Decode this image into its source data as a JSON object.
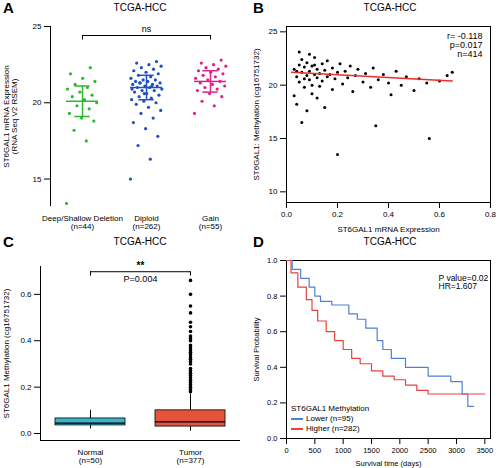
{
  "chart_data": [
    {
      "panel_label": "A",
      "type": "strip",
      "title": "TCGA-HCC",
      "y_label": "ST6GAL1 mRNA Expression\n(RNA Seq V2 RSEM)",
      "categories": [
        "Deep/Shallow Deletion\n(n=44)",
        "Diploid\n(n=262)",
        "Gain\n(n=55)"
      ],
      "colors": [
        "#2eb82e",
        "#1f4fc4",
        "#e0208c"
      ],
      "values": [
        [
          13.4,
          17.5,
          18.2,
          18.8,
          19.0,
          19.3,
          19.6,
          19.8,
          20.0,
          20.2,
          20.4,
          20.5,
          20.7,
          20.9,
          21.0,
          21.2,
          21.4,
          21.6,
          21.9,
          22.3
        ],
        [
          15.0,
          16.3,
          17.2,
          17.8,
          18.3,
          18.7,
          19.0,
          19.3,
          19.5,
          19.7,
          19.9,
          20.0,
          20.1,
          20.2,
          20.3,
          20.4,
          20.5,
          20.6,
          20.7,
          20.8,
          20.8,
          20.9,
          21.0,
          21.0,
          21.1,
          21.1,
          21.2,
          21.2,
          21.3,
          21.3,
          21.4,
          21.4,
          21.5,
          21.5,
          21.6,
          21.7,
          21.8,
          21.9,
          22.0,
          22.1,
          22.2,
          22.3,
          22.4,
          22.5,
          22.6,
          22.7,
          20.6,
          20.9,
          21.1,
          21.3
        ],
        [
          19.3,
          19.8,
          20.1,
          20.4,
          20.6,
          20.8,
          20.9,
          21.0,
          21.1,
          21.2,
          21.3,
          21.4,
          21.5,
          21.6,
          21.7,
          21.8,
          21.9,
          22.0,
          22.1,
          22.2,
          22.3,
          22.4,
          22.5,
          22.6,
          22.8
        ]
      ],
      "mean": [
        20.1,
        21.0,
        21.4
      ],
      "sd": [
        1.0,
        0.8,
        0.7
      ],
      "annotation": "ns",
      "ylim": [
        13.2,
        25
      ],
      "yticks": [
        15,
        20,
        25
      ]
    },
    {
      "panel_label": "B",
      "type": "scatter",
      "title": "TCGA-HCC",
      "x_label": "ST6GAL1 mRNA Expression",
      "y_label": "ST6GAL1: Methylation (cg16751732)",
      "color": "#000000",
      "x": [
        0.03,
        0.04,
        0.05,
        0.05,
        0.06,
        0.06,
        0.07,
        0.07,
        0.08,
        0.08,
        0.09,
        0.09,
        0.1,
        0.1,
        0.11,
        0.11,
        0.12,
        0.12,
        0.13,
        0.13,
        0.14,
        0.14,
        0.15,
        0.16,
        0.16,
        0.17,
        0.18,
        0.18,
        0.19,
        0.2,
        0.21,
        0.22,
        0.23,
        0.24,
        0.25,
        0.26,
        0.27,
        0.28,
        0.3,
        0.31,
        0.33,
        0.34,
        0.36,
        0.38,
        0.4,
        0.41,
        0.43,
        0.45,
        0.47,
        0.5,
        0.52,
        0.55,
        0.56,
        0.6,
        0.63,
        0.65,
        0.04,
        0.06,
        0.08,
        0.03,
        0.12,
        0.2,
        0.15,
        0.35,
        0.09,
        0.05,
        0.1,
        0.07,
        0.04,
        0.11
      ],
      "y": [
        21.5,
        20.8,
        21.9,
        20.3,
        21.2,
        22.4,
        19.8,
        21.7,
        20.9,
        22.1,
        21.3,
        20.5,
        21.8,
        19.2,
        21.0,
        22.6,
        20.7,
        21.5,
        21.1,
        19.9,
        22.0,
        20.4,
        21.4,
        20.8,
        22.3,
        21.0,
        19.6,
        21.6,
        20.6,
        21.2,
        22.0,
        20.1,
        21.3,
        20.7,
        21.8,
        19.4,
        20.9,
        21.5,
        20.3,
        21.1,
        19.8,
        21.6,
        20.5,
        21.0,
        20.2,
        19.1,
        21.3,
        20.0,
        20.8,
        19.5,
        20.6,
        20.2,
        15.0,
        20.4,
        20.9,
        21.2,
        18.2,
        16.5,
        17.6,
        19.0,
        18.8,
        13.5,
        17.9,
        16.2,
        22.9,
        23.1,
        20.0,
        20.6,
        21.3,
        21.9
      ],
      "fit": {
        "x": [
          0.02,
          0.65
        ],
        "y": [
          21.2,
          20.4
        ],
        "color": "#e8302a"
      },
      "annotations": [
        "r= -0.118",
        "p=0.017",
        "n=414"
      ],
      "xlim": [
        0,
        0.8
      ],
      "xticks": [
        {
          "value": 0,
          "label": "0.0"
        },
        0.2,
        0.4,
        0.6,
        0.8
      ],
      "ylim": [
        9,
        25.5
      ],
      "yticks": [
        10,
        15,
        20,
        25
      ]
    },
    {
      "panel_label": "C",
      "type": "box",
      "title": "TCGA-HCC",
      "y_label": "ST6GAL1 Methylation (cg16751732)",
      "categories": [
        "Normal\n(n=50)",
        "Tumor\n(n=377)"
      ],
      "colors": [
        "#3bb3c9",
        "#e5533b"
      ],
      "q1": [
        0.035,
        0.03
      ],
      "median": [
        0.045,
        0.05
      ],
      "q3": [
        0.065,
        0.1
      ],
      "whisker_low": [
        0.02,
        0.01
      ],
      "whisker_high": [
        0.1,
        0.17
      ],
      "outliers": [
        [],
        [
          0.18,
          0.19,
          0.2,
          0.21,
          0.22,
          0.23,
          0.24,
          0.25,
          0.26,
          0.27,
          0.28,
          0.3,
          0.31,
          0.32,
          0.33,
          0.34,
          0.35,
          0.36,
          0.37,
          0.38,
          0.4,
          0.41,
          0.42,
          0.44,
          0.46,
          0.48,
          0.52,
          0.55,
          0.6,
          0.66
        ]
      ],
      "annotations": [
        "**",
        "P=0.004"
      ],
      "ylim": [
        -0.03,
        0.72
      ],
      "yticks": [
        {
          "value": 0,
          "label": "0.0"
        },
        0.2,
        0.4,
        0.6
      ]
    },
    {
      "panel_label": "D",
      "type": "step",
      "title": "TCGA-HCC",
      "x_label": "Survival time (days)",
      "y_label": "Survival Probability",
      "legend": "bottom-left",
      "legend_title": "ST6GAL1 Methylation",
      "series": [
        {
          "name": "Lower (n=95)",
          "color": "#4f7fd6",
          "x": [
            0,
            100,
            250,
            400,
            500,
            600,
            800,
            1100,
            1250,
            1400,
            1600,
            1700,
            1850,
            2100,
            2500,
            2900,
            3100,
            3200,
            3300
          ],
          "y": [
            1.0,
            0.95,
            0.9,
            0.85,
            0.8,
            0.77,
            0.75,
            0.7,
            0.67,
            0.62,
            0.55,
            0.5,
            0.45,
            0.4,
            0.35,
            0.32,
            0.25,
            0.18,
            0.18
          ]
        },
        {
          "name": "Higher (n=282)",
          "color": "#e8423f",
          "x": [
            0,
            80,
            200,
            350,
            450,
            550,
            700,
            850,
            1000,
            1150,
            1300,
            1500,
            1700,
            1900,
            2100,
            2300,
            2500,
            3500
          ],
          "y": [
            1.0,
            0.93,
            0.85,
            0.78,
            0.72,
            0.66,
            0.6,
            0.55,
            0.5,
            0.45,
            0.42,
            0.38,
            0.35,
            0.33,
            0.3,
            0.27,
            0.25,
            0.25
          ]
        }
      ],
      "annotations": [
        "P value=0.02",
        "HR=1.607"
      ],
      "xlim": [
        0,
        3600
      ],
      "xticks": [
        0,
        500,
        1000,
        1500,
        2000,
        2500,
        3000,
        3500
      ],
      "ylim": [
        0,
        1
      ],
      "yticks": [
        {
          "value": 0,
          "label": "0.0"
        },
        0.2,
        0.4,
        0.6,
        0.8,
        {
          "value": 1,
          "label": "1.0"
        }
      ]
    }
  ]
}
